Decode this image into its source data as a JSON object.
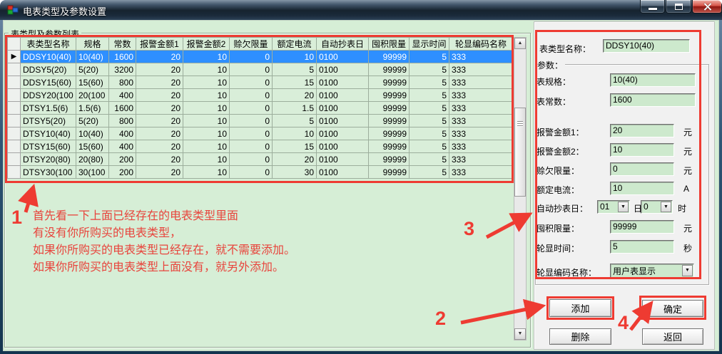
{
  "window": {
    "title": "电表类型及参数设置"
  },
  "icons": {
    "app": "cubes-icon",
    "row_pointer": "▶",
    "scroll_up": "▲",
    "scroll_down": "▼",
    "combo_arrow": "▼"
  },
  "left_group": {
    "label": "表类型及参数列表"
  },
  "table": {
    "headers": [
      "表类型名称",
      "规格",
      "常数",
      "报警金额1",
      "报警金额2",
      "赊欠限量",
      "额定电流",
      "自动抄表日",
      "囤积限量",
      "显示时间",
      "轮显编码名称"
    ],
    "rows": [
      [
        "DDSY10(40)",
        "10(40)",
        "1600",
        "20",
        "10",
        "0",
        "10",
        "0100",
        "99999",
        "5",
        "333"
      ],
      [
        "DDSY5(20)",
        "5(20)",
        "3200",
        "20",
        "10",
        "0",
        "5",
        "0100",
        "99999",
        "5",
        "333"
      ],
      [
        "DDSY15(60)",
        "15(60)",
        "800",
        "20",
        "10",
        "0",
        "15",
        "0100",
        "99999",
        "5",
        "333"
      ],
      [
        "DDSY20(100",
        "20(100",
        "400",
        "20",
        "10",
        "0",
        "20",
        "0100",
        "99999",
        "5",
        "333"
      ],
      [
        "DTSY1.5(6)",
        "1.5(6)",
        "1600",
        "20",
        "10",
        "0",
        "1.5",
        "0100",
        "99999",
        "5",
        "333"
      ],
      [
        "DTSY5(20)",
        "5(20)",
        "800",
        "20",
        "10",
        "0",
        "5",
        "0100",
        "99999",
        "5",
        "333"
      ],
      [
        "DTSY10(40)",
        "10(40)",
        "400",
        "20",
        "10",
        "0",
        "10",
        "0100",
        "99999",
        "5",
        "333"
      ],
      [
        "DTSY15(60)",
        "15(60)",
        "400",
        "20",
        "10",
        "0",
        "15",
        "0100",
        "99999",
        "5",
        "333"
      ],
      [
        "DTSY20(80)",
        "20(80)",
        "200",
        "20",
        "10",
        "0",
        "20",
        "0100",
        "99999",
        "5",
        "333"
      ],
      [
        "DTSY30(100",
        "30(100",
        "200",
        "20",
        "10",
        "0",
        "30",
        "0100",
        "99999",
        "5",
        "333"
      ]
    ],
    "selected_index": 0
  },
  "right_panel": {
    "type_name": {
      "label": "表类型名称：",
      "value": "DDSY10(40)"
    },
    "params_label": "参数：",
    "fields": {
      "spec": {
        "label": "表规格：",
        "value": "10(40)",
        "unit": ""
      },
      "constant": {
        "label": "表常数：",
        "value": "1600",
        "unit": ""
      },
      "alarm1": {
        "label": "报警金额1：",
        "value": "20",
        "unit": "元"
      },
      "alarm2": {
        "label": "报警金额2：",
        "value": "10",
        "unit": "元"
      },
      "credit": {
        "label": "赊欠限量：",
        "value": "0",
        "unit": "元"
      },
      "current": {
        "label": "额定电流：",
        "value": "10",
        "unit": "A"
      },
      "hoard": {
        "label": "囤积限量：",
        "value": "99999",
        "unit": "元"
      },
      "cycle": {
        "label": "轮显时间：",
        "value": "5",
        "unit": "秒"
      }
    },
    "auto_read": {
      "label": "自动抄表日：",
      "day_value": "01",
      "day_unit": "日",
      "hour_value": "0",
      "hour_unit": "时"
    },
    "code_name": {
      "label": "轮显编码名称：",
      "value": "用户表显示"
    }
  },
  "buttons": {
    "add": "添加",
    "confirm": "确定",
    "delete": "删除",
    "back": "返回"
  },
  "annotations": {
    "step1": "1",
    "step2": "2",
    "step3": "3",
    "step4": "4",
    "note_lines": [
      "首先看一下上面已经存在的电表类型里面",
      "有没有你所购买的电表类型，",
      "如果你所购买的电表类型已经存在，就不需要添加。",
      "如果你所购买的电表类型上面没有，就另外添加。"
    ],
    "accent_color": "#ee3b32"
  }
}
